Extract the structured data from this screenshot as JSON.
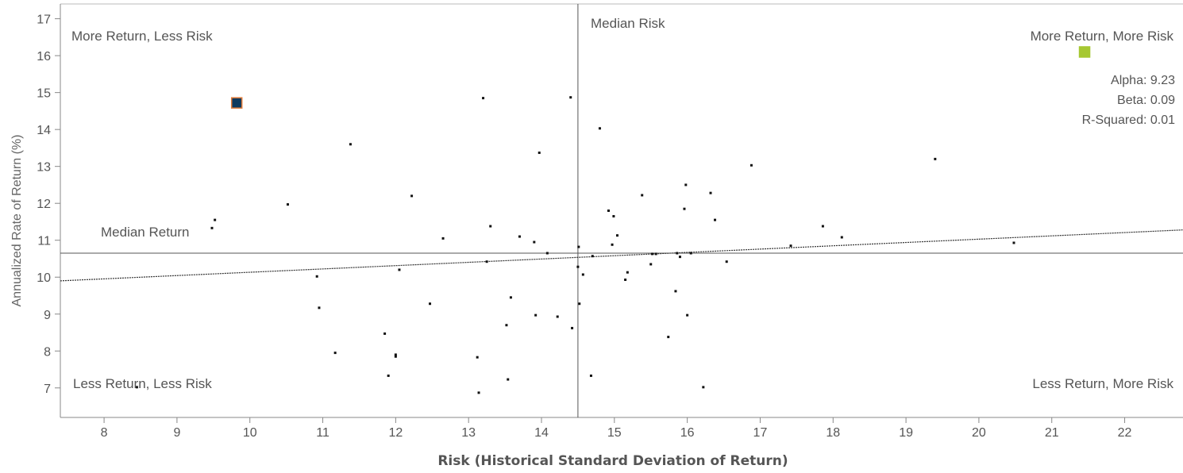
{
  "chart_data": {
    "type": "scatter",
    "xlabel": "Risk (Historical Standard Deviation of Return)",
    "ylabel": "Annualized Rate of Return (%)",
    "xlim": [
      7.4,
      22.8
    ],
    "ylim": [
      6.2,
      17.4
    ],
    "x_ticks": [
      8,
      9,
      10,
      11,
      12,
      13,
      14,
      15,
      16,
      17,
      18,
      19,
      20,
      21,
      22
    ],
    "y_ticks": [
      7,
      8,
      9,
      10,
      11,
      12,
      13,
      14,
      15,
      16,
      17
    ],
    "median_risk": 14.5,
    "median_return": 10.65,
    "median_risk_label": "Median Risk",
    "median_return_label": "Median Return",
    "quadrant_labels": {
      "top_left": "More Return, Less Risk",
      "top_right": "More Return, More Risk",
      "bottom_left": "Less Return, Less Risk",
      "bottom_right": "Less Return, More Risk"
    },
    "stats": {
      "alpha": "Alpha: 9.23",
      "beta": "Beta: 0.09",
      "r_squared": "R-Squared: 0.01"
    },
    "trend_line": {
      "x": [
        7.4,
        22.8
      ],
      "y": [
        9.9,
        11.28
      ]
    },
    "highlight_points": [
      {
        "x": 9.82,
        "y": 14.72,
        "color": "#0e3a5e",
        "outline": "#e07b39"
      },
      {
        "x": 21.45,
        "y": 16.1,
        "color": "#a6c832",
        "outline": "#a6c832"
      }
    ],
    "colors": {
      "points": "#111111",
      "axis": "#888888",
      "median_lines": "#555555",
      "trend": "#333333"
    },
    "points": [
      [
        8.45,
        7.02
      ],
      [
        9.48,
        11.33
      ],
      [
        9.52,
        11.55
      ],
      [
        10.52,
        11.97
      ],
      [
        10.92,
        10.02
      ],
      [
        10.95,
        9.17
      ],
      [
        11.17,
        7.95
      ],
      [
        11.38,
        13.6
      ],
      [
        11.85,
        8.47
      ],
      [
        11.9,
        7.33
      ],
      [
        12.0,
        7.9
      ],
      [
        12.0,
        7.85
      ],
      [
        12.05,
        10.2
      ],
      [
        12.22,
        12.2
      ],
      [
        12.47,
        9.28
      ],
      [
        12.65,
        11.05
      ],
      [
        13.12,
        7.83
      ],
      [
        13.14,
        6.87
      ],
      [
        13.2,
        14.85
      ],
      [
        13.25,
        10.42
      ],
      [
        13.3,
        11.38
      ],
      [
        13.52,
        8.7
      ],
      [
        13.54,
        7.23
      ],
      [
        13.58,
        9.45
      ],
      [
        13.7,
        11.1
      ],
      [
        13.9,
        10.95
      ],
      [
        13.92,
        8.97
      ],
      [
        13.97,
        13.37
      ],
      [
        14.08,
        10.65
      ],
      [
        14.22,
        8.93
      ],
      [
        14.4,
        14.87
      ],
      [
        14.42,
        8.62
      ],
      [
        14.5,
        10.28
      ],
      [
        14.51,
        10.82
      ],
      [
        14.52,
        9.28
      ],
      [
        14.57,
        10.07
      ],
      [
        14.68,
        7.33
      ],
      [
        14.7,
        10.57
      ],
      [
        14.8,
        14.03
      ],
      [
        14.92,
        11.8
      ],
      [
        14.97,
        10.88
      ],
      [
        14.99,
        11.65
      ],
      [
        15.04,
        11.13
      ],
      [
        15.15,
        9.93
      ],
      [
        15.18,
        10.13
      ],
      [
        15.38,
        12.22
      ],
      [
        15.5,
        10.35
      ],
      [
        15.52,
        10.63
      ],
      [
        15.57,
        10.63
      ],
      [
        15.74,
        8.38
      ],
      [
        15.84,
        9.62
      ],
      [
        15.86,
        10.65
      ],
      [
        15.9,
        10.55
      ],
      [
        15.96,
        11.85
      ],
      [
        15.98,
        12.5
      ],
      [
        16.0,
        8.97
      ],
      [
        16.05,
        10.65
      ],
      [
        16.22,
        7.02
      ],
      [
        16.32,
        12.28
      ],
      [
        16.38,
        11.55
      ],
      [
        16.54,
        10.42
      ],
      [
        16.88,
        13.03
      ],
      [
        17.42,
        10.85
      ],
      [
        17.86,
        11.38
      ],
      [
        18.12,
        11.08
      ],
      [
        19.4,
        13.2
      ],
      [
        20.48,
        10.93
      ]
    ]
  }
}
